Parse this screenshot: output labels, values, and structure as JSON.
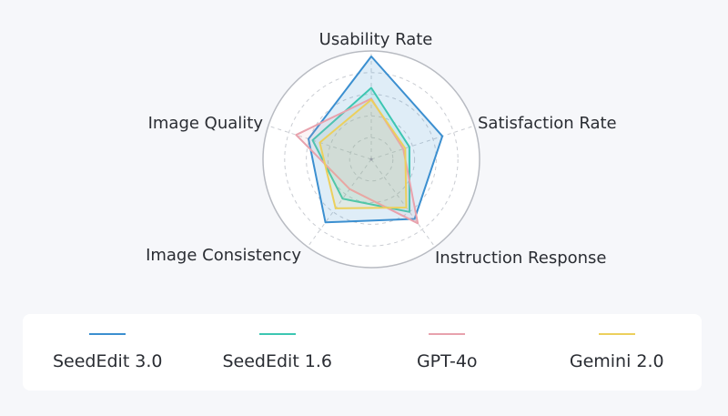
{
  "chart_data": {
    "type": "radar",
    "axes": [
      "Usability Rate",
      "Satisfaction Rate",
      "Instruction Response",
      "Image Consistency",
      "Image Quality"
    ],
    "range": [
      0,
      1
    ],
    "grid": "circular, dashed rings",
    "legend_placement": "bottom",
    "series": [
      {
        "name": "SeedEdit 3.0",
        "color": "#3b8fd0",
        "values": [
          0.95,
          0.69,
          0.68,
          0.72,
          0.61
        ]
      },
      {
        "name": "SeedEdit 1.6",
        "color": "#3cc6b2",
        "values": [
          0.66,
          0.37,
          0.6,
          0.45,
          0.57
        ]
      },
      {
        "name": "GPT-4o",
        "color": "#e8a2ad",
        "values": [
          0.56,
          0.31,
          0.73,
          0.34,
          0.73
        ]
      },
      {
        "name": "Gemini 2.0",
        "color": "#ecd05c",
        "values": [
          0.55,
          0.33,
          0.55,
          0.56,
          0.5
        ]
      }
    ]
  }
}
